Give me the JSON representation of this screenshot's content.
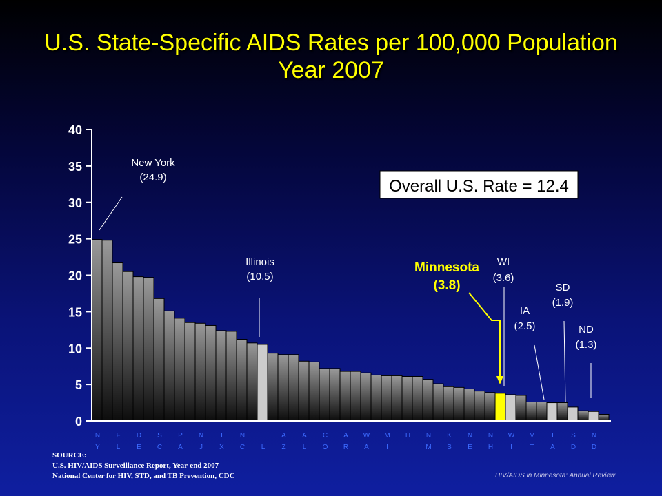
{
  "title": {
    "line1": "U.S. State-Specific AIDS Rates per 100,000 Population",
    "line2": "Year 2007"
  },
  "source": {
    "heading": "SOURCE:",
    "line1": "U.S.  HIV/AIDS Surveillance Report, Year-end 2007",
    "line2": "National Center for HIV, STD,  and TB Prevention, CDC"
  },
  "footer": "HIV/AIDS in Minnesota: Annual Review",
  "chart_data": {
    "type": "bar",
    "ylim": [
      0,
      40
    ],
    "yticks": [
      0,
      5,
      10,
      15,
      20,
      25,
      30,
      35,
      40
    ],
    "values": [
      24.9,
      24.8,
      21.7,
      20.5,
      19.8,
      19.7,
      16.8,
      15.1,
      14.1,
      13.5,
      13.4,
      13.1,
      12.4,
      12.3,
      11.2,
      10.7,
      10.5,
      9.3,
      9.1,
      9.1,
      8.2,
      8.1,
      7.2,
      7.2,
      6.8,
      6.8,
      6.6,
      6.3,
      6.2,
      6.2,
      6.1,
      6.1,
      5.7,
      5.1,
      4.7,
      4.6,
      4.4,
      4.1,
      3.9,
      3.8,
      3.6,
      3.5,
      2.6,
      2.6,
      2.5,
      2.5,
      1.9,
      1.4,
      1.3,
      0.9
    ],
    "highlight": {
      "16": "light",
      "39": "yellow",
      "40": "light",
      "44": "light",
      "46": "light",
      "48": "light"
    },
    "tick_labels": [
      {
        "bar": 0,
        "top": "N",
        "bottom": "Y"
      },
      {
        "bar": 2,
        "top": "F",
        "bottom": "L"
      },
      {
        "bar": 4,
        "top": "D",
        "bottom": "E"
      },
      {
        "bar": 6,
        "top": "S",
        "bottom": "C"
      },
      {
        "bar": 8,
        "top": "P",
        "bottom": "A"
      },
      {
        "bar": 10,
        "top": "N",
        "bottom": "J"
      },
      {
        "bar": 12,
        "top": "T",
        "bottom": "X"
      },
      {
        "bar": 14,
        "top": "N",
        "bottom": "C"
      },
      {
        "bar": 16,
        "top": "I",
        "bottom": "L"
      },
      {
        "bar": 18,
        "top": "A",
        "bottom": "Z"
      },
      {
        "bar": 20,
        "top": "A",
        "bottom": "L"
      },
      {
        "bar": 22,
        "top": "C",
        "bottom": "O"
      },
      {
        "bar": 24,
        "top": "A",
        "bottom": "R"
      },
      {
        "bar": 26,
        "top": "W",
        "bottom": "A"
      },
      {
        "bar": 28,
        "top": "M",
        "bottom": "I"
      },
      {
        "bar": 30,
        "top": "H",
        "bottom": "I"
      },
      {
        "bar": 32,
        "top": "N",
        "bottom": "M"
      },
      {
        "bar": 34,
        "top": "K",
        "bottom": "S"
      },
      {
        "bar": 36,
        "top": "N",
        "bottom": "E"
      },
      {
        "bar": 38,
        "top": "N",
        "bottom": "H"
      },
      {
        "bar": 40,
        "top": "W",
        "bottom": "I"
      },
      {
        "bar": 42,
        "top": "M",
        "bottom": "T"
      },
      {
        "bar": 44,
        "top": "I",
        "bottom": "A"
      },
      {
        "bar": 46,
        "top": "S",
        "bottom": "D"
      },
      {
        "bar": 48,
        "top": "N",
        "bottom": "D"
      }
    ],
    "overall_rate_label": "Overall U.S. Rate = 12.4",
    "annotations": [
      {
        "name": "new-york",
        "line1": "New York",
        "line2": "(24.9)",
        "bar": 0,
        "style": "white"
      },
      {
        "name": "illinois",
        "line1": "Illinois",
        "line2": "(10.5)",
        "bar": 16,
        "style": "white"
      },
      {
        "name": "minnesota",
        "line1": "Minnesota",
        "line2": "(3.8)",
        "bar": 39,
        "style": "yellow"
      },
      {
        "name": "wi",
        "line1": "WI",
        "line2": "(3.6)",
        "bar": 40,
        "style": "white"
      },
      {
        "name": "ia",
        "line1": "IA",
        "line2": "(2.5)",
        "bar": 44,
        "style": "white"
      },
      {
        "name": "sd",
        "line1": "SD",
        "line2": "(1.9)",
        "bar": 46,
        "style": "white"
      },
      {
        "name": "nd",
        "line1": "ND",
        "line2": "(1.3)",
        "bar": 48,
        "style": "white"
      }
    ]
  }
}
